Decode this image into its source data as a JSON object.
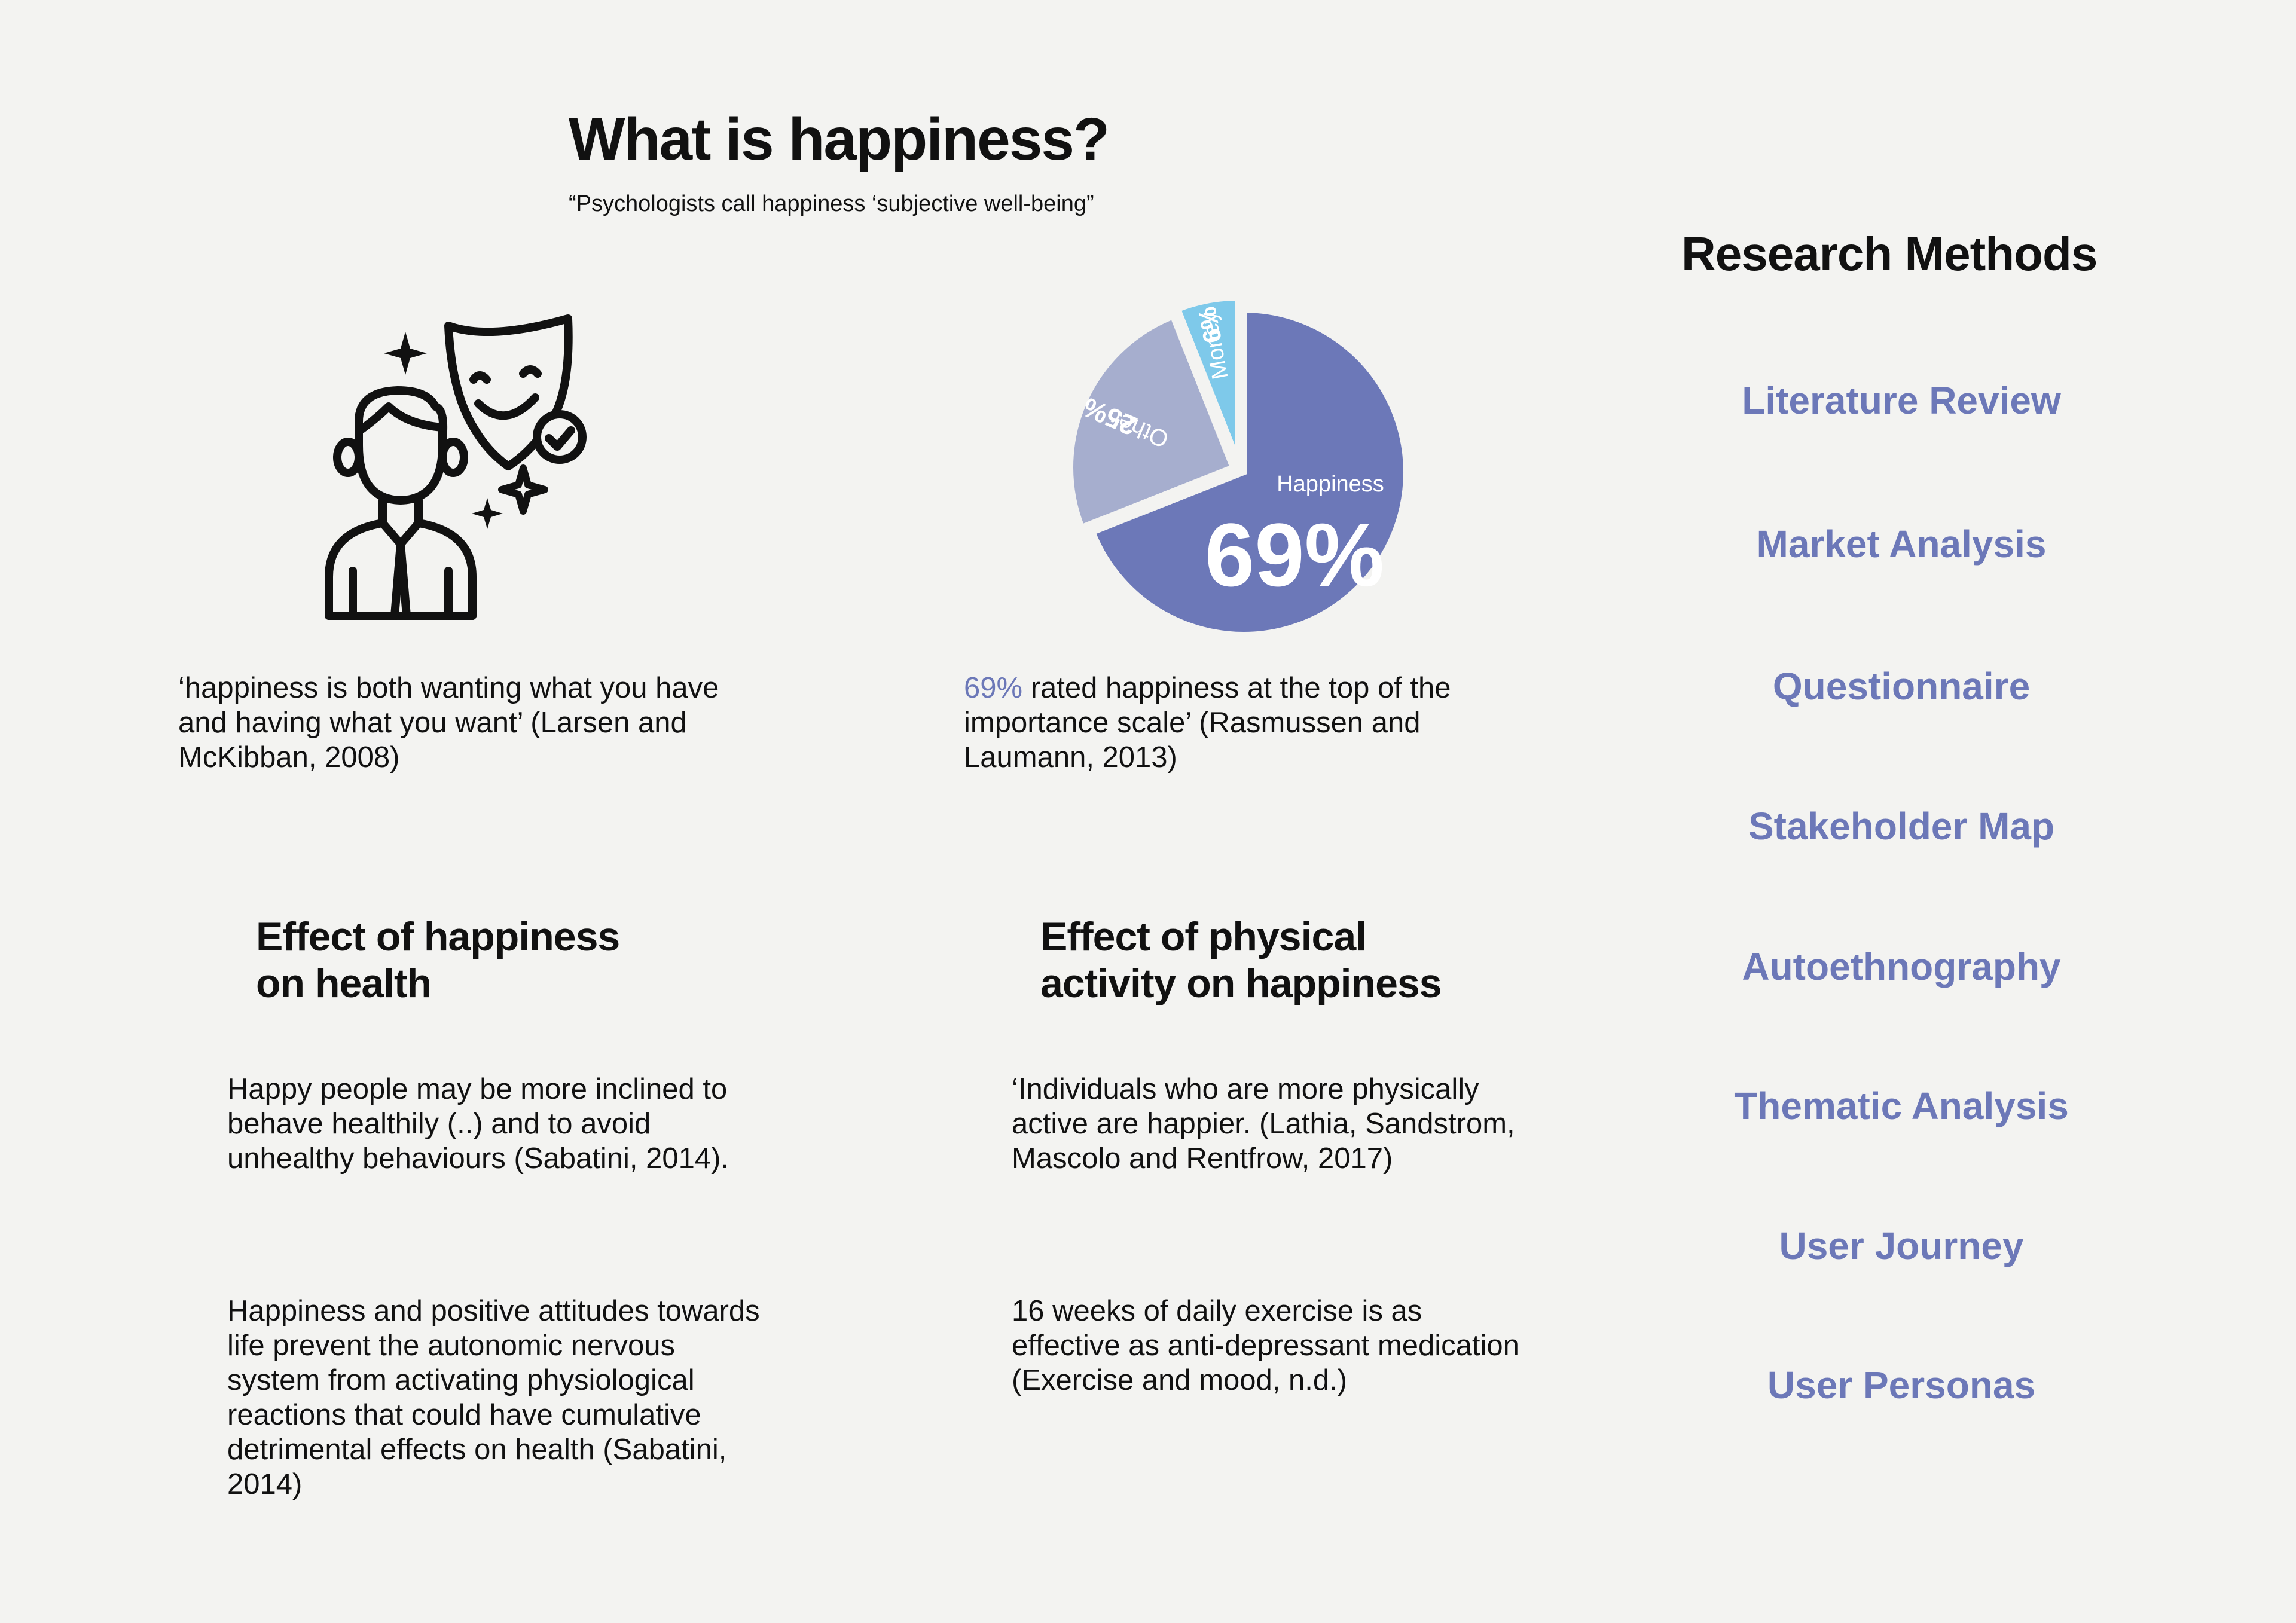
{
  "header": {
    "title": "What is happiness?",
    "subtitle": "“Psychologists call happiness ‘subjective well-being”"
  },
  "illustration": {
    "icon": "happy-mask-person-icon"
  },
  "quotes": {
    "left": "‘happiness is both wanting what you have and having what you want’ (Larsen and McKibban, 2008)",
    "right_highlight": "69%",
    "right_rest": " rated happiness at the top of the importance scale’ (Rasmussen and Laumann, 2013)"
  },
  "sections": [
    {
      "title_line1": "Effect of happiness",
      "title_line2": "on health",
      "paragraphs": [
        "Happy people may be more inclined to behave healthily (..) and to avoid unhealthy behaviours (Sabatini, 2014).",
        "Happiness and positive attitudes towards life prevent the autonomic nervous system from activating physiological reactions that could have cumulative detrimental effects on health (Sabatini, 2014)"
      ]
    },
    {
      "title_line1": "Effect of physical",
      "title_line2": "activity on happiness",
      "paragraphs": [
        "‘Individuals who are more physically active are happier. (Lathia, Sandstrom, Mascolo and Rentfrow, 2017)",
        "16 weeks of daily exercise is as effective as anti-depressant medication (Exercise and mood, n.d.)"
      ]
    }
  ],
  "research_methods": {
    "title": "Research Methods",
    "items": [
      "Literature Review",
      "Market Analysis",
      "Questionnaire",
      "Stakeholder Map",
      "Autoethnography",
      "Thematic Analysis",
      "User Journey",
      "User Personas"
    ]
  },
  "chart_data": {
    "type": "pie",
    "slices": [
      {
        "label": "Happiness",
        "value": 69,
        "value_label": "69%",
        "color": "#6c78b8"
      },
      {
        "label": "Other",
        "value": 25,
        "value_label": "25%",
        "color": "#a6aece"
      },
      {
        "label": "Money",
        "value": 6,
        "value_label": "6%",
        "color": "#7ec9ea"
      }
    ]
  },
  "colors": {
    "accent": "#6c78b8",
    "background": "#f3f3f1",
    "text": "#111111"
  }
}
